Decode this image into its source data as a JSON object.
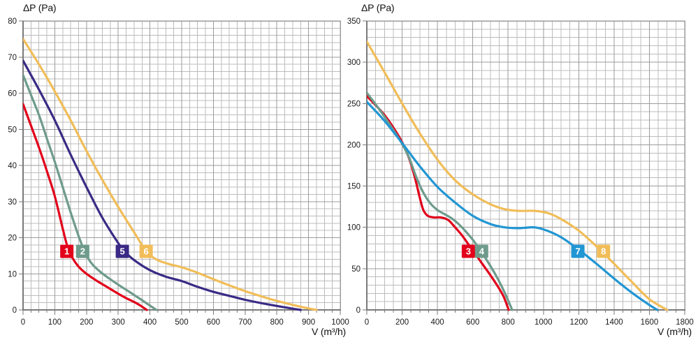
{
  "figure": {
    "background": "#ffffff",
    "grid_minor_color": "#bcbcbc",
    "grid_major_color": "#9b9b9b",
    "axis_color": "#7a7a7a",
    "tick_text_color": "#1a1a1a",
    "badge_text_color": "#ffffff"
  },
  "chart_data": [
    {
      "type": "line",
      "title": "ΔP (Pa)",
      "xlabel": "V (m³/h)",
      "ylabel": "ΔP (Pa)",
      "xlim": [
        0,
        1000
      ],
      "ylim": [
        0,
        80
      ],
      "x_ticks": [
        0,
        100,
        200,
        300,
        400,
        500,
        600,
        700,
        800,
        900,
        1000
      ],
      "y_ticks": [
        0,
        10,
        20,
        30,
        40,
        50,
        60,
        70,
        80
      ],
      "x_minor_step": 25,
      "y_minor_step": 2,
      "grid": true,
      "legend_position": "badges-on-curves",
      "series": [
        {
          "name": "1",
          "color": "#e2001a",
          "badge": [
            138,
            16.2
          ],
          "points": [
            [
              0,
              57
            ],
            [
              25,
              51
            ],
            [
              50,
              45
            ],
            [
              75,
              38.5
            ],
            [
              100,
              31.5
            ],
            [
              125,
              22.5
            ],
            [
              140,
              17.5
            ],
            [
              155,
              14.5
            ],
            [
              175,
              12
            ],
            [
              200,
              10
            ],
            [
              230,
              8.2
            ],
            [
              260,
              6.6
            ],
            [
              290,
              5
            ],
            [
              320,
              3.5
            ],
            [
              350,
              2.2
            ],
            [
              370,
              1.2
            ],
            [
              390,
              0
            ]
          ]
        },
        {
          "name": "2",
          "color": "#6e9b8b",
          "badge": [
            188,
            16.2
          ],
          "points": [
            [
              0,
              65
            ],
            [
              25,
              59.5
            ],
            [
              50,
              54
            ],
            [
              75,
              47.5
            ],
            [
              100,
              41
            ],
            [
              125,
              34
            ],
            [
              150,
              27
            ],
            [
              175,
              20.5
            ],
            [
              195,
              16
            ],
            [
              215,
              13
            ],
            [
              240,
              10.8
            ],
            [
              270,
              8.8
            ],
            [
              300,
              7
            ],
            [
              335,
              5
            ],
            [
              370,
              3
            ],
            [
              395,
              1.5
            ],
            [
              420,
              0
            ]
          ]
        },
        {
          "name": "5",
          "color": "#3b2a85",
          "badge": [
            313,
            16.2
          ],
          "points": [
            [
              0,
              69
            ],
            [
              50,
              61
            ],
            [
              100,
              52.5
            ],
            [
              150,
              43
            ],
            [
              200,
              34
            ],
            [
              250,
              25.5
            ],
            [
              300,
              18.5
            ],
            [
              320,
              16.2
            ],
            [
              350,
              13.8
            ],
            [
              400,
              11
            ],
            [
              450,
              9.2
            ],
            [
              500,
              8
            ],
            [
              550,
              6.4
            ],
            [
              600,
              5
            ],
            [
              650,
              3.9
            ],
            [
              700,
              2.8
            ],
            [
              750,
              1.9
            ],
            [
              800,
              1.1
            ],
            [
              840,
              0.5
            ],
            [
              875,
              0
            ]
          ]
        },
        {
          "name": "6",
          "color": "#f1bd58",
          "badge": [
            388,
            16.2
          ],
          "points": [
            [
              0,
              75
            ],
            [
              50,
              68
            ],
            [
              100,
              60.5
            ],
            [
              150,
              52.5
            ],
            [
              200,
              44
            ],
            [
              250,
              36
            ],
            [
              300,
              28.5
            ],
            [
              350,
              21.5
            ],
            [
              388,
              16.3
            ],
            [
              420,
              14
            ],
            [
              460,
              12.7
            ],
            [
              500,
              11.8
            ],
            [
              550,
              10.3
            ],
            [
              600,
              8.5
            ],
            [
              650,
              6.8
            ],
            [
              700,
              5.2
            ],
            [
              750,
              3.8
            ],
            [
              800,
              2.5
            ],
            [
              850,
              1.4
            ],
            [
              890,
              0.6
            ],
            [
              925,
              0
            ]
          ]
        }
      ]
    },
    {
      "type": "line",
      "title": "ΔP (Pa)",
      "xlabel": "V (m³/h)",
      "ylabel": "ΔP (Pa)",
      "xlim": [
        0,
        1800
      ],
      "ylim": [
        0,
        350
      ],
      "x_ticks": [
        0,
        200,
        400,
        600,
        800,
        1000,
        1200,
        1400,
        1600,
        1800
      ],
      "y_ticks": [
        0,
        50,
        100,
        150,
        200,
        250,
        300,
        350
      ],
      "x_minor_step": 50,
      "y_minor_step": 10,
      "grid": true,
      "legend_position": "badges-on-curves",
      "series": [
        {
          "name": "3",
          "color": "#e2001a",
          "badge": [
            575,
            71
          ],
          "points": [
            [
              0,
              259
            ],
            [
              50,
              248
            ],
            [
              100,
              236
            ],
            [
              150,
              221
            ],
            [
              200,
              203
            ],
            [
              240,
              183
            ],
            [
              270,
              162
            ],
            [
              300,
              136
            ],
            [
              320,
              121
            ],
            [
              345,
              114
            ],
            [
              380,
              112
            ],
            [
              420,
              112
            ],
            [
              460,
              109
            ],
            [
              500,
              100
            ],
            [
              540,
              90
            ],
            [
              580,
              78
            ],
            [
              620,
              66
            ],
            [
              660,
              54
            ],
            [
              700,
              42
            ],
            [
              740,
              29
            ],
            [
              775,
              16
            ],
            [
              803,
              0
            ]
          ]
        },
        {
          "name": "4",
          "color": "#6e9b8b",
          "badge": [
            650,
            71
          ],
          "points": [
            [
              0,
              263
            ],
            [
              50,
              249
            ],
            [
              100,
              234
            ],
            [
              150,
              218
            ],
            [
              200,
              201
            ],
            [
              240,
              184
            ],
            [
              280,
              161
            ],
            [
              320,
              142
            ],
            [
              360,
              129
            ],
            [
              400,
              121
            ],
            [
              440,
              116
            ],
            [
              480,
              111
            ],
            [
              520,
              104
            ],
            [
              560,
              95
            ],
            [
              600,
              85
            ],
            [
              640,
              73
            ],
            [
              680,
              60
            ],
            [
              720,
              46
            ],
            [
              760,
              30
            ],
            [
              795,
              14
            ],
            [
              823,
              0
            ]
          ]
        },
        {
          "name": "7",
          "color": "#2196d3",
          "badge": [
            1195,
            71
          ],
          "points": [
            [
              0,
              252
            ],
            [
              100,
              229
            ],
            [
              200,
              202
            ],
            [
              300,
              174
            ],
            [
              400,
              149
            ],
            [
              500,
              130
            ],
            [
              600,
              114
            ],
            [
              700,
              104
            ],
            [
              780,
              100
            ],
            [
              860,
              99
            ],
            [
              950,
              100
            ],
            [
              1020,
              96
            ],
            [
              1100,
              88
            ],
            [
              1200,
              73
            ],
            [
              1300,
              56
            ],
            [
              1400,
              38
            ],
            [
              1500,
              21
            ],
            [
              1600,
              6
            ],
            [
              1645,
              0
            ]
          ]
        },
        {
          "name": "8",
          "color": "#f1bd58",
          "badge": [
            1340,
            71
          ],
          "points": [
            [
              0,
              325
            ],
            [
              100,
              288
            ],
            [
              200,
              250
            ],
            [
              300,
              214
            ],
            [
              400,
              182
            ],
            [
              500,
              157
            ],
            [
              600,
              140
            ],
            [
              700,
              128
            ],
            [
              780,
              122
            ],
            [
              860,
              120
            ],
            [
              950,
              120
            ],
            [
              1030,
              117
            ],
            [
              1100,
              110
            ],
            [
              1200,
              96
            ],
            [
              1300,
              77
            ],
            [
              1400,
              56
            ],
            [
              1500,
              34
            ],
            [
              1600,
              13
            ],
            [
              1700,
              0
            ]
          ]
        }
      ]
    }
  ]
}
